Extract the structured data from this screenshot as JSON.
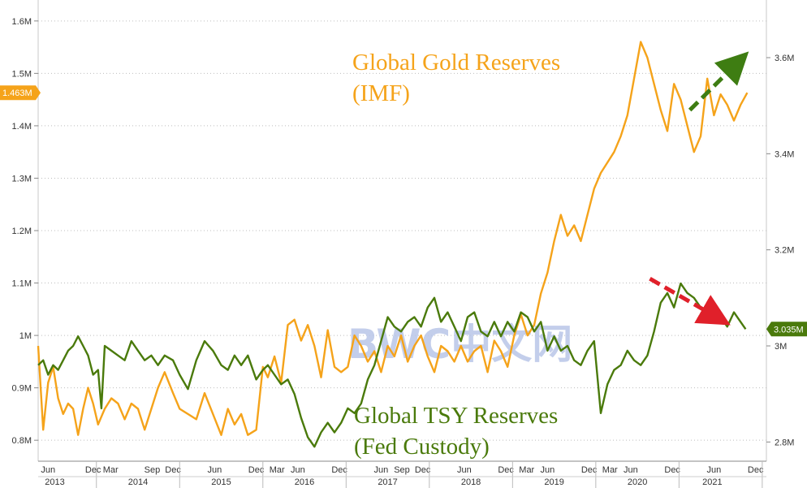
{
  "chart_data": {
    "type": "line",
    "watermark": "BWC中文网",
    "colors": {
      "gold": "#f5a31a",
      "tsy": "#4a7a0b",
      "up_arrow": "#3e7d12",
      "down_arrow": "#e0202a"
    },
    "left_axis": {
      "ticks": [
        "0.8M",
        "0.9M",
        "1M",
        "1.1M",
        "1.2M",
        "1.3M",
        "1.4M",
        "1.5M",
        "1.6M"
      ],
      "tick_values": [
        0.8,
        0.9,
        1.0,
        1.1,
        1.2,
        1.3,
        1.4,
        1.5,
        1.6
      ],
      "range": [
        0.76,
        1.64
      ],
      "unit": "M"
    },
    "right_axis": {
      "ticks": [
        "2.8M",
        "3M",
        "3.2M",
        "3.4M",
        "3.6M"
      ],
      "tick_values": [
        2.8,
        3.0,
        3.2,
        3.4,
        3.6
      ],
      "range": [
        2.76,
        3.72
      ],
      "unit": "M"
    },
    "x_axis": {
      "months": [
        "Jun",
        "Dec",
        "Mar",
        "Sep",
        "Dec",
        "Jun",
        "Dec",
        "Mar",
        "Jun",
        "Dec",
        "Jun",
        "Sep",
        "Dec",
        "Jun",
        "Dec",
        "Mar",
        "Jun",
        "Dec",
        "Mar",
        "Jun",
        "Dec",
        "Jun",
        "Dec"
      ],
      "month_pos": [
        2013.42,
        2013.96,
        2014.17,
        2014.67,
        2014.92,
        2015.42,
        2015.92,
        2016.17,
        2016.42,
        2016.92,
        2017.42,
        2017.67,
        2017.92,
        2018.42,
        2018.92,
        2019.17,
        2019.42,
        2019.92,
        2020.17,
        2020.42,
        2020.92,
        2021.42,
        2021.92
      ],
      "years": [
        "2013",
        "2014",
        "2015",
        "2016",
        "2017",
        "2018",
        "2019",
        "2020",
        "2021"
      ],
      "year_pos": [
        2013.5,
        2014.5,
        2015.5,
        2016.5,
        2017.5,
        2018.5,
        2019.5,
        2020.5,
        2021.4
      ],
      "range": [
        2013.3,
        2022.05
      ]
    },
    "series": [
      {
        "name": "Global Gold Reserves (IMF)",
        "axis": "left",
        "last_value_label": "1.463M",
        "x": [
          2013.3,
          2013.36,
          2013.42,
          2013.48,
          2013.54,
          2013.6,
          2013.66,
          2013.72,
          2013.78,
          2013.84,
          2013.9,
          2013.96,
          2014.02,
          2014.1,
          2014.18,
          2014.26,
          2014.34,
          2014.42,
          2014.5,
          2014.58,
          2014.66,
          2014.74,
          2014.82,
          2014.92,
          2015.0,
          2015.1,
          2015.2,
          2015.3,
          2015.4,
          2015.5,
          2015.58,
          2015.66,
          2015.74,
          2015.82,
          2015.92,
          2016.0,
          2016.06,
          2016.14,
          2016.22,
          2016.3,
          2016.38,
          2016.46,
          2016.54,
          2016.62,
          2016.7,
          2016.78,
          2016.86,
          2016.94,
          2017.02,
          2017.1,
          2017.18,
          2017.26,
          2017.34,
          2017.42,
          2017.5,
          2017.58,
          2017.66,
          2017.74,
          2017.82,
          2017.9,
          2017.98,
          2018.06,
          2018.14,
          2018.22,
          2018.3,
          2018.38,
          2018.46,
          2018.54,
          2018.62,
          2018.7,
          2018.78,
          2018.86,
          2018.94,
          2019.02,
          2019.1,
          2019.18,
          2019.26,
          2019.34,
          2019.42,
          2019.5,
          2019.58,
          2019.66,
          2019.74,
          2019.82,
          2019.9,
          2019.98,
          2020.06,
          2020.14,
          2020.22,
          2020.3,
          2020.38,
          2020.46,
          2020.54,
          2020.62,
          2020.7,
          2020.78,
          2020.86,
          2020.94,
          2021.02,
          2021.1,
          2021.18,
          2021.26,
          2021.34,
          2021.42,
          2021.5,
          2021.58,
          2021.66,
          2021.74,
          2021.82
        ],
        "values": [
          0.98,
          0.82,
          0.91,
          0.94,
          0.88,
          0.85,
          0.87,
          0.86,
          0.81,
          0.86,
          0.9,
          0.87,
          0.83,
          0.86,
          0.88,
          0.87,
          0.84,
          0.87,
          0.86,
          0.82,
          0.86,
          0.9,
          0.93,
          0.89,
          0.86,
          0.85,
          0.84,
          0.89,
          0.85,
          0.81,
          0.86,
          0.83,
          0.85,
          0.81,
          0.82,
          0.94,
          0.92,
          0.96,
          0.91,
          1.02,
          1.03,
          0.99,
          1.02,
          0.98,
          0.92,
          1.01,
          0.94,
          0.93,
          0.94,
          1.0,
          0.98,
          0.95,
          0.97,
          0.93,
          0.98,
          0.96,
          1.0,
          0.95,
          0.98,
          1.0,
          0.96,
          0.93,
          0.98,
          0.97,
          0.95,
          0.98,
          0.95,
          0.97,
          0.98,
          0.93,
          0.99,
          0.97,
          0.94,
          1.0,
          1.04,
          1.0,
          1.02,
          1.08,
          1.12,
          1.18,
          1.23,
          1.19,
          1.21,
          1.18,
          1.23,
          1.28,
          1.31,
          1.33,
          1.35,
          1.38,
          1.42,
          1.49,
          1.56,
          1.53,
          1.48,
          1.43,
          1.39,
          1.48,
          1.45,
          1.4,
          1.35,
          1.38,
          1.49,
          1.42,
          1.46,
          1.44,
          1.41,
          1.44,
          1.463
        ]
      },
      {
        "name": "Global TSY Reserves (Fed Custody)",
        "axis": "right",
        "last_value_label": "3.035M",
        "x": [
          2013.3,
          2013.36,
          2013.42,
          2013.48,
          2013.54,
          2013.6,
          2013.66,
          2013.72,
          2013.78,
          2013.84,
          2013.9,
          2013.96,
          2014.02,
          2014.06,
          2014.1,
          2014.18,
          2014.26,
          2014.34,
          2014.42,
          2014.5,
          2014.58,
          2014.66,
          2014.74,
          2014.82,
          2014.92,
          2015.0,
          2015.1,
          2015.2,
          2015.3,
          2015.4,
          2015.5,
          2015.58,
          2015.66,
          2015.74,
          2015.82,
          2015.92,
          2016.0,
          2016.06,
          2016.14,
          2016.22,
          2016.3,
          2016.38,
          2016.46,
          2016.54,
          2016.62,
          2016.7,
          2016.78,
          2016.86,
          2016.94,
          2017.02,
          2017.1,
          2017.18,
          2017.26,
          2017.34,
          2017.42,
          2017.5,
          2017.58,
          2017.66,
          2017.74,
          2017.82,
          2017.9,
          2017.98,
          2018.06,
          2018.14,
          2018.22,
          2018.3,
          2018.38,
          2018.46,
          2018.54,
          2018.62,
          2018.7,
          2018.78,
          2018.86,
          2018.94,
          2019.02,
          2019.1,
          2019.18,
          2019.26,
          2019.34,
          2019.42,
          2019.5,
          2019.58,
          2019.66,
          2019.74,
          2019.82,
          2019.9,
          2019.98,
          2020.06,
          2020.14,
          2020.22,
          2020.3,
          2020.38,
          2020.46,
          2020.54,
          2020.62,
          2020.7,
          2020.78,
          2020.86,
          2020.94,
          2021.02,
          2021.1,
          2021.18,
          2021.26,
          2021.34,
          2021.42,
          2021.5,
          2021.58,
          2021.66,
          2021.74,
          2021.8
        ],
        "values": [
          2.96,
          2.97,
          2.94,
          2.96,
          2.95,
          2.97,
          2.99,
          3.0,
          3.02,
          3.0,
          2.98,
          2.94,
          2.95,
          2.87,
          3.0,
          2.99,
          2.98,
          2.97,
          3.01,
          2.99,
          2.97,
          2.98,
          2.96,
          2.98,
          2.97,
          2.94,
          2.91,
          2.97,
          3.01,
          2.99,
          2.96,
          2.95,
          2.98,
          2.96,
          2.98,
          2.93,
          2.95,
          2.96,
          2.94,
          2.92,
          2.93,
          2.9,
          2.85,
          2.81,
          2.79,
          2.82,
          2.84,
          2.82,
          2.84,
          2.87,
          2.86,
          2.88,
          2.93,
          2.96,
          3.01,
          3.06,
          3.04,
          3.03,
          3.05,
          3.06,
          3.04,
          3.08,
          3.1,
          3.05,
          3.07,
          3.04,
          3.01,
          3.06,
          3.07,
          3.03,
          3.02,
          3.05,
          3.02,
          3.05,
          3.03,
          3.07,
          3.06,
          3.03,
          3.05,
          2.99,
          3.02,
          2.99,
          3.0,
          2.97,
          2.96,
          2.99,
          3.01,
          2.86,
          2.92,
          2.95,
          2.96,
          2.99,
          2.97,
          2.96,
          2.98,
          3.03,
          3.09,
          3.11,
          3.08,
          3.13,
          3.11,
          3.1,
          3.08,
          3.06,
          3.09,
          3.06,
          3.04,
          3.07,
          3.05,
          3.035
        ]
      }
    ],
    "annotations": [
      {
        "kind": "arrow-up",
        "color": "up_arrow",
        "from": [
          2021.13,
          1.43
        ],
        "to": [
          2021.7,
          1.52
        ],
        "axis": "left"
      },
      {
        "kind": "arrow-down",
        "color": "down_arrow",
        "from": [
          2020.65,
          3.14
        ],
        "to": [
          2021.45,
          3.06
        ],
        "axis": "right"
      }
    ],
    "grid": "dotted horizontal at left-axis ticks",
    "legend_placement": "inline-text"
  },
  "labels": {
    "gold_line1": "Global Gold Reserves",
    "gold_line2": "(IMF)",
    "tsy_line1": "Global TSY Reserves",
    "tsy_line2": "(Fed Custody)"
  }
}
